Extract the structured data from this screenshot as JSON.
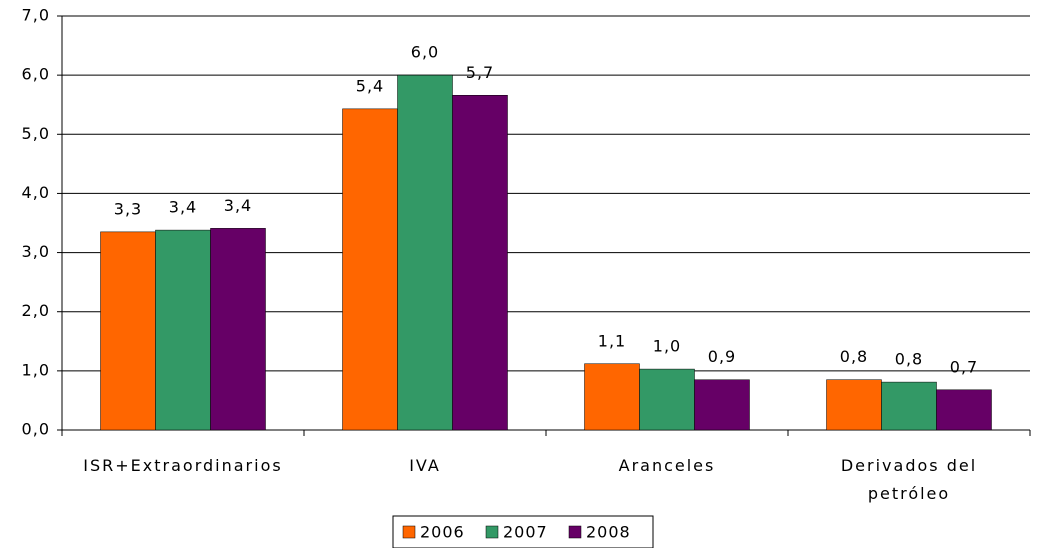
{
  "chart_data": {
    "type": "bar",
    "categories": [
      "ISR+Extraordinarios",
      "IVA",
      "Aranceles",
      "Derivados del petróleo"
    ],
    "series": [
      {
        "name": "2006",
        "color": "#ff6600",
        "values": [
          3.35,
          5.43,
          1.12,
          0.85
        ],
        "value_labels": [
          "3,3",
          "5,4",
          "1,1",
          "0,8"
        ]
      },
      {
        "name": "2007",
        "color": "#339966",
        "values": [
          3.38,
          6.0,
          1.03,
          0.81
        ],
        "value_labels": [
          "3,4",
          "6,0",
          "1,0",
          "0,8"
        ]
      },
      {
        "name": "2008",
        "color": "#660066",
        "values": [
          3.41,
          5.66,
          0.85,
          0.68
        ],
        "value_labels": [
          "3,4",
          "5,7",
          "0,9",
          "0,7"
        ]
      }
    ],
    "ylim": [
      0,
      7
    ],
    "yticks": [
      {
        "value": 0,
        "label": "0,0"
      },
      {
        "value": 1,
        "label": "1,0"
      },
      {
        "value": 2,
        "label": "2,0"
      },
      {
        "value": 3,
        "label": "3,0"
      },
      {
        "value": 4,
        "label": "4,0"
      },
      {
        "value": 5,
        "label": "5,0"
      },
      {
        "value": 6,
        "label": "6,0"
      },
      {
        "value": 7,
        "label": "7,0"
      }
    ],
    "grid": true,
    "legend": "bottom"
  }
}
